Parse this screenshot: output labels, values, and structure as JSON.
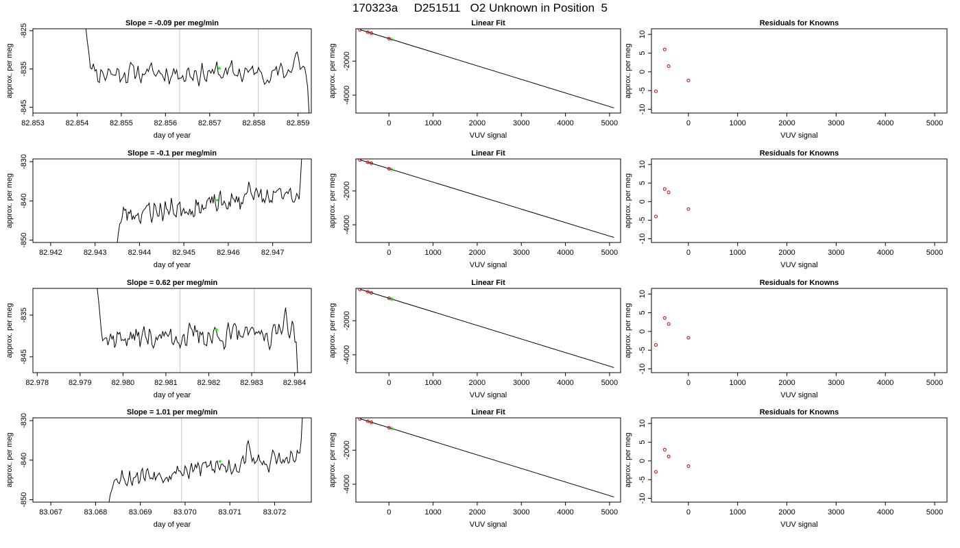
{
  "figure": {
    "title": "170323a     D251511   O2 Unknown in Position  5"
  },
  "styles": {
    "trace_color": "#000000",
    "vline_color": "#c8c8c8",
    "green": "#00ff00",
    "red": "#cc0000",
    "fit_color": "#000000"
  },
  "chart_data": [
    {
      "type": "line",
      "row": 0,
      "col": 0,
      "title": "Slope =  -0.09  per meg/min",
      "xlabel": "day of year",
      "ylabel": "approx. per meg",
      "xlim": [
        82.853,
        82.8593
      ],
      "ylim": [
        -846.5,
        -824.5
      ],
      "xticks": [
        82.853,
        82.854,
        82.855,
        82.856,
        82.857,
        82.858,
        82.859
      ],
      "xtick_labels": [
        "82.853",
        "82.854",
        "82.855",
        "82.856",
        "82.857",
        "82.858",
        "82.859"
      ],
      "yticks": [
        -825,
        -835,
        -845
      ],
      "ytick_labels": [
        "-825",
        "-835",
        "-845"
      ],
      "vlines": [
        82.85632,
        82.8581
      ],
      "highlight": {
        "x": 82.85722,
        "y": -834.8
      },
      "trace": {
        "x_start": 82.8542,
        "x_end": 82.85925,
        "base": -836,
        "amp": 2.2,
        "seed": 11,
        "trend": 0,
        "start_y": -824.5,
        "end_y": -846.5,
        "ramp_in": 0.0003,
        "ramp_out": 0.00012,
        "end_bump": [
          82.85896,
          -831.5
        ]
      }
    },
    {
      "type": "scatter",
      "row": 0,
      "col": 1,
      "title": "Linear Fit",
      "xlabel": "VUV signal",
      "ylabel": "approx. per meg",
      "xlim": [
        -750,
        5250
      ],
      "ylim": [
        -5050,
        -100
      ],
      "xticks": [
        0,
        1000,
        2000,
        3000,
        4000,
        5000
      ],
      "xtick_labels": [
        "0",
        "1000",
        "2000",
        "3000",
        "4000",
        "5000"
      ],
      "yticks": [
        -2000,
        -4000
      ],
      "ytick_labels": [
        "-2000",
        "-4000"
      ],
      "fit_line": {
        "x": [
          -660,
          5100
        ],
        "y": [
          -150,
          -4750
        ]
      },
      "points_red": [
        {
          "x": -660,
          "y": -160
        },
        {
          "x": -480,
          "y": -300
        },
        {
          "x": -400,
          "y": -360
        },
        {
          "x": 0,
          "y": -680
        }
      ],
      "points_green": [
        {
          "x": 60,
          "y": -730
        }
      ]
    },
    {
      "type": "scatter",
      "row": 0,
      "col": 2,
      "title": "Residuals for Knowns",
      "xlabel": "VUV signal",
      "ylabel": "approx. per meg",
      "xlim": [
        -750,
        5250
      ],
      "ylim": [
        -11,
        11.5
      ],
      "xticks": [
        0,
        1000,
        2000,
        3000,
        4000,
        5000
      ],
      "xtick_labels": [
        "0",
        "1000",
        "2000",
        "3000",
        "4000",
        "5000"
      ],
      "yticks": [
        -10,
        -5,
        0,
        5,
        10
      ],
      "ytick_labels": [
        "-10",
        "-5",
        "0",
        "5",
        "10"
      ],
      "points_red": [
        {
          "x": -660,
          "y": -5.2
        },
        {
          "x": -480,
          "y": 6.0
        },
        {
          "x": -400,
          "y": 1.5
        },
        {
          "x": 0,
          "y": -2.3
        }
      ]
    },
    {
      "type": "line",
      "row": 1,
      "col": 0,
      "title": "Slope =  -0.1  per meg/min",
      "xlabel": "day of year",
      "ylabel": "approx. per meg",
      "xlim": [
        82.9416,
        82.94787
      ],
      "ylim": [
        -850.6,
        -829.3
      ],
      "xticks": [
        82.942,
        82.943,
        82.944,
        82.945,
        82.946,
        82.947
      ],
      "xtick_labels": [
        "82.942",
        "82.943",
        "82.944",
        "82.945",
        "82.946",
        "82.947"
      ],
      "yticks": [
        -830,
        -840,
        -850
      ],
      "ytick_labels": [
        "-830",
        "-840",
        "-850"
      ],
      "vlines": [
        82.94489,
        82.94663
      ],
      "highlight": {
        "x": 82.94575,
        "y": -839.8
      },
      "trace": {
        "x_start": 82.9435,
        "x_end": 82.94765,
        "base": -841,
        "amp": 2.3,
        "seed": 23,
        "trend": 5,
        "start_y": -850.6,
        "end_y": -829.3,
        "ramp_in": 0.0002,
        "ramp_out": 0.00012,
        "end_bump": [
          82.9465,
          -836
        ]
      }
    },
    {
      "type": "scatter",
      "row": 1,
      "col": 1,
      "title": "Linear Fit",
      "xlabel": "VUV signal",
      "ylabel": "approx. per meg",
      "xlim": [
        -750,
        5250
      ],
      "ylim": [
        -5050,
        -100
      ],
      "xticks": [
        0,
        1000,
        2000,
        3000,
        4000,
        5000
      ],
      "xtick_labels": [
        "0",
        "1000",
        "2000",
        "3000",
        "4000",
        "5000"
      ],
      "yticks": [
        -2000,
        -4000
      ],
      "ytick_labels": [
        "-2000",
        "-4000"
      ],
      "fit_line": {
        "x": [
          -660,
          5100
        ],
        "y": [
          -150,
          -4750
        ]
      },
      "points_red": [
        {
          "x": -660,
          "y": -160
        },
        {
          "x": -480,
          "y": -300
        },
        {
          "x": -400,
          "y": -360
        },
        {
          "x": 0,
          "y": -680
        }
      ],
      "points_green": [
        {
          "x": 60,
          "y": -730
        }
      ]
    },
    {
      "type": "scatter",
      "row": 1,
      "col": 2,
      "title": "Residuals for Knowns",
      "xlabel": "VUV signal",
      "ylabel": "approx. per meg",
      "xlim": [
        -750,
        5250
      ],
      "ylim": [
        -11,
        11.5
      ],
      "xticks": [
        0,
        1000,
        2000,
        3000,
        4000,
        5000
      ],
      "xtick_labels": [
        "0",
        "1000",
        "2000",
        "3000",
        "4000",
        "5000"
      ],
      "yticks": [
        -10,
        -5,
        0,
        5,
        10
      ],
      "ytick_labels": [
        "-10",
        "-5",
        "0",
        "5",
        "10"
      ],
      "points_red": [
        {
          "x": -660,
          "y": -4.0
        },
        {
          "x": -480,
          "y": 3.4
        },
        {
          "x": -400,
          "y": 2.5
        },
        {
          "x": 0,
          "y": -2.0
        }
      ]
    },
    {
      "type": "line",
      "row": 2,
      "col": 0,
      "title": "Slope =  0.62  per meg/min",
      "xlabel": "day of year",
      "ylabel": "approx. per meg",
      "xlim": [
        82.9779,
        82.98439
      ],
      "ylim": [
        -848.8,
        -828.6
      ],
      "xticks": [
        82.978,
        82.979,
        82.98,
        82.981,
        82.982,
        82.983,
        82.984
      ],
      "xtick_labels": [
        "82.978",
        "82.979",
        "82.980",
        "82.981",
        "82.982",
        "82.983",
        "82.984"
      ],
      "yticks": [
        -835,
        -845
      ],
      "ytick_labels": [
        "-835",
        "-845"
      ],
      "vlines": [
        82.98133,
        82.98306
      ],
      "highlight": {
        "x": 82.98218,
        "y": -838.5
      },
      "trace": {
        "x_start": 82.9794,
        "x_end": 82.98407,
        "base": -840,
        "amp": 2.2,
        "seed": 37,
        "trend": 1,
        "start_y": -828.6,
        "end_y": -848.8,
        "ramp_in": 0.0003,
        "ramp_out": 8e-05,
        "end_bump": [
          82.98378,
          -835
        ]
      }
    },
    {
      "type": "scatter",
      "row": 2,
      "col": 1,
      "title": "Linear Fit",
      "xlabel": "VUV signal",
      "ylabel": "approx. per meg",
      "xlim": [
        -750,
        5250
      ],
      "ylim": [
        -5050,
        -100
      ],
      "xticks": [
        0,
        1000,
        2000,
        3000,
        4000,
        5000
      ],
      "xtick_labels": [
        "0",
        "1000",
        "2000",
        "3000",
        "4000",
        "5000"
      ],
      "yticks": [
        -2000,
        -4000
      ],
      "ytick_labels": [
        "-2000",
        "-4000"
      ],
      "fit_line": {
        "x": [
          -660,
          5100
        ],
        "y": [
          -150,
          -4750
        ]
      },
      "points_red": [
        {
          "x": -660,
          "y": -160
        },
        {
          "x": -480,
          "y": -300
        },
        {
          "x": -400,
          "y": -360
        },
        {
          "x": 0,
          "y": -680
        }
      ],
      "points_green": [
        {
          "x": 60,
          "y": -730
        }
      ]
    },
    {
      "type": "scatter",
      "row": 2,
      "col": 2,
      "title": "Residuals for Knowns",
      "xlabel": "VUV signal",
      "ylabel": "approx. per meg",
      "xlim": [
        -750,
        5250
      ],
      "ylim": [
        -11,
        11.5
      ],
      "xticks": [
        0,
        1000,
        2000,
        3000,
        4000,
        5000
      ],
      "xtick_labels": [
        "0",
        "1000",
        "2000",
        "3000",
        "4000",
        "5000"
      ],
      "yticks": [
        -10,
        -5,
        0,
        5,
        10
      ],
      "ytick_labels": [
        "-10",
        "-5",
        "0",
        "5",
        "10"
      ],
      "points_red": [
        {
          "x": -660,
          "y": -3.6
        },
        {
          "x": -480,
          "y": 3.6
        },
        {
          "x": -400,
          "y": 2.0
        },
        {
          "x": 0,
          "y": -1.7
        }
      ]
    },
    {
      "type": "line",
      "row": 3,
      "col": 0,
      "title": "Slope =  1.01  per meg/min",
      "xlabel": "day of year",
      "ylabel": "approx. per meg",
      "xlim": [
        83.0666,
        83.07282
      ],
      "ylim": [
        -850.6,
        -829.3
      ],
      "xticks": [
        83.067,
        83.068,
        83.069,
        83.07,
        83.071,
        83.072
      ],
      "xtick_labels": [
        "83.067",
        "83.068",
        "83.069",
        "83.070",
        "83.071",
        "83.072"
      ],
      "yticks": [
        -830,
        -840,
        -850
      ],
      "ytick_labels": [
        "-830",
        "-840",
        "-850"
      ],
      "vlines": [
        83.06992,
        83.07163
      ],
      "highlight": {
        "x": 83.07078,
        "y": -840.3
      },
      "trace": {
        "x_start": 83.0683,
        "x_end": 83.07262,
        "base": -842,
        "amp": 2.0,
        "seed": 53,
        "trend": 5,
        "start_y": -850.6,
        "end_y": -829.3,
        "ramp_in": 0.0002,
        "ramp_out": 0.00012,
        "end_bump": [
          83.0714,
          -837.5
        ]
      }
    },
    {
      "type": "scatter",
      "row": 3,
      "col": 1,
      "title": "Linear Fit",
      "xlabel": "VUV signal",
      "ylabel": "approx. per meg",
      "xlim": [
        -750,
        5250
      ],
      "ylim": [
        -5050,
        -100
      ],
      "xticks": [
        0,
        1000,
        2000,
        3000,
        4000,
        5000
      ],
      "xtick_labels": [
        "0",
        "1000",
        "2000",
        "3000",
        "4000",
        "5000"
      ],
      "yticks": [
        -2000,
        -4000
      ],
      "ytick_labels": [
        "-2000",
        "-4000"
      ],
      "fit_line": {
        "x": [
          -660,
          5100
        ],
        "y": [
          -150,
          -4750
        ]
      },
      "points_red": [
        {
          "x": -660,
          "y": -160
        },
        {
          "x": -480,
          "y": -300
        },
        {
          "x": -400,
          "y": -360
        },
        {
          "x": 0,
          "y": -680
        }
      ],
      "points_green": [
        {
          "x": 60,
          "y": -730
        }
      ]
    },
    {
      "type": "scatter",
      "row": 3,
      "col": 2,
      "title": "Residuals for Knowns",
      "xlabel": "VUV signal",
      "ylabel": "approx. per meg",
      "xlim": [
        -750,
        5250
      ],
      "ylim": [
        -11,
        11.5
      ],
      "xticks": [
        0,
        1000,
        2000,
        3000,
        4000,
        5000
      ],
      "xtick_labels": [
        "0",
        "1000",
        "2000",
        "3000",
        "4000",
        "5000"
      ],
      "yticks": [
        -10,
        -5,
        0,
        5,
        10
      ],
      "ytick_labels": [
        "-10",
        "-5",
        "0",
        "5",
        "10"
      ],
      "points_red": [
        {
          "x": -660,
          "y": -2.9
        },
        {
          "x": -480,
          "y": 3.0
        },
        {
          "x": -400,
          "y": 1.2
        },
        {
          "x": 0,
          "y": -1.4
        }
      ]
    }
  ]
}
